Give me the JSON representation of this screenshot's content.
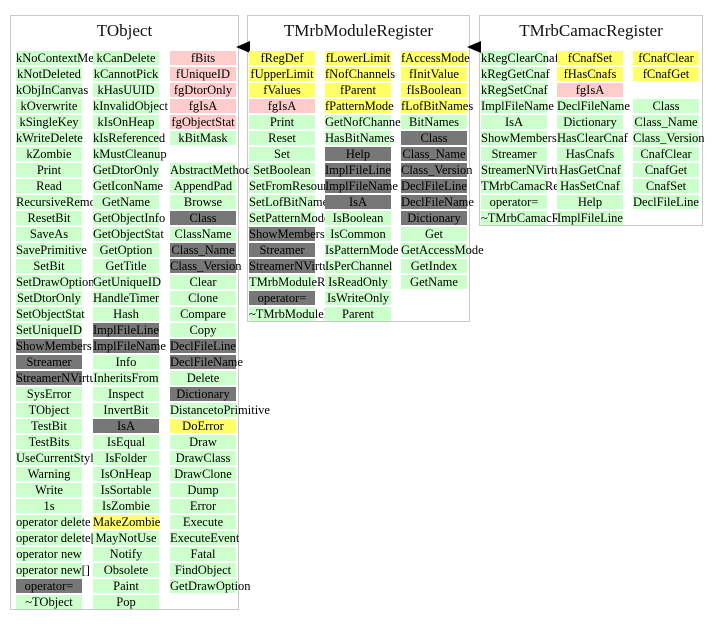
{
  "classes": [
    {
      "key": "tobject",
      "title": "TObject",
      "columns": [
        [
          {
            "t": "kNoContextMenu",
            "c": "g"
          },
          {
            "t": "kNotDeleted",
            "c": "g"
          },
          {
            "t": "kObjInCanvas",
            "c": "g"
          },
          {
            "t": "kOverwrite",
            "c": "g"
          },
          {
            "t": "kSingleKey",
            "c": "g"
          },
          {
            "t": "kWriteDelete",
            "c": "g"
          },
          {
            "t": "kZombie",
            "c": "g"
          },
          {
            "t": "Print",
            "c": "g"
          },
          {
            "t": "Read",
            "c": "g"
          },
          {
            "t": "RecursiveRemove",
            "c": "g"
          },
          {
            "t": "ResetBit",
            "c": "g"
          },
          {
            "t": "SaveAs",
            "c": "g"
          },
          {
            "t": "SavePrimitive",
            "c": "g"
          },
          {
            "t": "SetBit",
            "c": "g"
          },
          {
            "t": "SetDrawOption",
            "c": "g"
          },
          {
            "t": "SetDtorOnly",
            "c": "g"
          },
          {
            "t": "SetObjectStat",
            "c": "g"
          },
          {
            "t": "SetUniqueID",
            "c": "g"
          },
          {
            "t": "ShowMembers",
            "c": "d"
          },
          {
            "t": "Streamer",
            "c": "d"
          },
          {
            "t": "StreamerNVirtual",
            "c": "d"
          },
          {
            "t": "SysError",
            "c": "g"
          },
          {
            "t": "TObject",
            "c": "g"
          },
          {
            "t": "TestBit",
            "c": "g"
          },
          {
            "t": "TestBits",
            "c": "g"
          },
          {
            "t": "UseCurrentStyle",
            "c": "g"
          },
          {
            "t": "Warning",
            "c": "g"
          },
          {
            "t": "Write",
            "c": "g"
          },
          {
            "t": "1s",
            "c": "g"
          },
          {
            "t": "operator delete",
            "c": "g"
          },
          {
            "t": "operator delete[]",
            "c": "g"
          },
          {
            "t": "operator new",
            "c": "g"
          },
          {
            "t": "operator new[]",
            "c": "g"
          },
          {
            "t": "operator=",
            "c": "d"
          },
          {
            "t": "~TObject",
            "c": "g"
          }
        ],
        [
          {
            "t": "kCanDelete",
            "c": "g"
          },
          {
            "t": "kCannotPick",
            "c": "g"
          },
          {
            "t": "kHasUUID",
            "c": "g"
          },
          {
            "t": "kInvalidObject",
            "c": "g"
          },
          {
            "t": "kIsOnHeap",
            "c": "g"
          },
          {
            "t": "kIsReferenced",
            "c": "g"
          },
          {
            "t": "kMustCleanup",
            "c": "g"
          },
          {
            "t": "GetDtorOnly",
            "c": "g"
          },
          {
            "t": "GetIconName",
            "c": "g"
          },
          {
            "t": "GetName",
            "c": "g"
          },
          {
            "t": "GetObjectInfo",
            "c": "g"
          },
          {
            "t": "GetObjectStat",
            "c": "g"
          },
          {
            "t": "GetOption",
            "c": "g"
          },
          {
            "t": "GetTitle",
            "c": "g"
          },
          {
            "t": "GetUniqueID",
            "c": "g"
          },
          {
            "t": "HandleTimer",
            "c": "g"
          },
          {
            "t": "Hash",
            "c": "g"
          },
          {
            "t": "ImplFileLine",
            "c": "d"
          },
          {
            "t": "ImplFileName",
            "c": "d"
          },
          {
            "t": "Info",
            "c": "g"
          },
          {
            "t": "InheritsFrom",
            "c": "g"
          },
          {
            "t": "Inspect",
            "c": "g"
          },
          {
            "t": "InvertBit",
            "c": "g"
          },
          {
            "t": "IsA",
            "c": "d"
          },
          {
            "t": "IsEqual",
            "c": "g"
          },
          {
            "t": "IsFolder",
            "c": "g"
          },
          {
            "t": "IsOnHeap",
            "c": "g"
          },
          {
            "t": "IsSortable",
            "c": "g"
          },
          {
            "t": "IsZombie",
            "c": "g"
          },
          {
            "t": "MakeZombie",
            "c": "y"
          },
          {
            "t": "MayNotUse",
            "c": "g"
          },
          {
            "t": "Notify",
            "c": "g"
          },
          {
            "t": "Obsolete",
            "c": "g"
          },
          {
            "t": "Paint",
            "c": "g"
          },
          {
            "t": "Pop",
            "c": "g"
          }
        ],
        [
          {
            "t": "fBits",
            "c": "p"
          },
          {
            "t": "fUniqueID",
            "c": "p"
          },
          {
            "t": "fgDtorOnly",
            "c": "p"
          },
          {
            "t": "fgIsA",
            "c": "p"
          },
          {
            "t": "fgObjectStat",
            "c": "p"
          },
          {
            "t": "kBitMask",
            "c": "g"
          },
          {
            "t": "",
            "c": "gap"
          },
          {
            "t": "AbstractMethod",
            "c": "g"
          },
          {
            "t": "AppendPad",
            "c": "g"
          },
          {
            "t": "Browse",
            "c": "g"
          },
          {
            "t": "Class",
            "c": "d"
          },
          {
            "t": "ClassName",
            "c": "g"
          },
          {
            "t": "Class_Name",
            "c": "d"
          },
          {
            "t": "Class_Version",
            "c": "d"
          },
          {
            "t": "Clear",
            "c": "g"
          },
          {
            "t": "Clone",
            "c": "g"
          },
          {
            "t": "Compare",
            "c": "g"
          },
          {
            "t": "Copy",
            "c": "g"
          },
          {
            "t": "DeclFileLine",
            "c": "d"
          },
          {
            "t": "DeclFileName",
            "c": "d"
          },
          {
            "t": "Delete",
            "c": "g"
          },
          {
            "t": "Dictionary",
            "c": "d"
          },
          {
            "t": "DistancetoPrimitive",
            "c": "g"
          },
          {
            "t": "DoError",
            "c": "y"
          },
          {
            "t": "Draw",
            "c": "g"
          },
          {
            "t": "DrawClass",
            "c": "g"
          },
          {
            "t": "DrawClone",
            "c": "g"
          },
          {
            "t": "Dump",
            "c": "g"
          },
          {
            "t": "Error",
            "c": "g"
          },
          {
            "t": "Execute",
            "c": "g"
          },
          {
            "t": "ExecuteEvent",
            "c": "g"
          },
          {
            "t": "Fatal",
            "c": "g"
          },
          {
            "t": "FindObject",
            "c": "g"
          },
          {
            "t": "GetDrawOption",
            "c": "g"
          }
        ]
      ]
    },
    {
      "key": "tmrbmoduleregister",
      "title": "TMrbModuleRegister",
      "columns": [
        [
          {
            "t": "fRegDef",
            "c": "y"
          },
          {
            "t": "fUpperLimit",
            "c": "y"
          },
          {
            "t": "fValues",
            "c": "y"
          },
          {
            "t": "fgIsA",
            "c": "p"
          },
          {
            "t": "Print",
            "c": "g"
          },
          {
            "t": "Reset",
            "c": "g"
          },
          {
            "t": "Set",
            "c": "g"
          },
          {
            "t": "SetBoolean",
            "c": "g"
          },
          {
            "t": "SetFromResource",
            "c": "g"
          },
          {
            "t": "SetLofBitNames",
            "c": "g"
          },
          {
            "t": "SetPatternMode",
            "c": "g"
          },
          {
            "t": "ShowMembers",
            "c": "d"
          },
          {
            "t": "Streamer",
            "c": "d"
          },
          {
            "t": "StreamerNVirtual",
            "c": "d"
          },
          {
            "t": "TMrbModuleRegister",
            "c": "g"
          },
          {
            "t": "operator=",
            "c": "d"
          },
          {
            "t": "~TMrbModuleRegister",
            "c": "g"
          }
        ],
        [
          {
            "t": "fLowerLimit",
            "c": "y"
          },
          {
            "t": "fNofChannels",
            "c": "y"
          },
          {
            "t": "fParent",
            "c": "y"
          },
          {
            "t": "fPatternMode",
            "c": "y"
          },
          {
            "t": "GetNofChannels",
            "c": "g"
          },
          {
            "t": "HasBitNames",
            "c": "g"
          },
          {
            "t": "Help",
            "c": "d"
          },
          {
            "t": "ImplFileLine",
            "c": "d"
          },
          {
            "t": "ImplFileName",
            "c": "d"
          },
          {
            "t": "IsA",
            "c": "d"
          },
          {
            "t": "IsBoolean",
            "c": "g"
          },
          {
            "t": "IsCommon",
            "c": "g"
          },
          {
            "t": "IsPatternMode",
            "c": "g"
          },
          {
            "t": "IsPerChannel",
            "c": "g"
          },
          {
            "t": "IsReadOnly",
            "c": "g"
          },
          {
            "t": "IsWriteOnly",
            "c": "g"
          },
          {
            "t": "Parent",
            "c": "g"
          }
        ],
        [
          {
            "t": "fAccessMode",
            "c": "y"
          },
          {
            "t": "fInitValue",
            "c": "y"
          },
          {
            "t": "fIsBoolean",
            "c": "y"
          },
          {
            "t": "fLofBitNames",
            "c": "y"
          },
          {
            "t": "BitNames",
            "c": "g"
          },
          {
            "t": "Class",
            "c": "d"
          },
          {
            "t": "Class_Name",
            "c": "d"
          },
          {
            "t": "Class_Version",
            "c": "d"
          },
          {
            "t": "DeclFileLine",
            "c": "d"
          },
          {
            "t": "DeclFileName",
            "c": "d"
          },
          {
            "t": "Dictionary",
            "c": "d"
          },
          {
            "t": "Get",
            "c": "g"
          },
          {
            "t": "GetAccessMode",
            "c": "g"
          },
          {
            "t": "GetIndex",
            "c": "g"
          },
          {
            "t": "GetName",
            "c": "g"
          }
        ]
      ]
    },
    {
      "key": "tmrbcamacregister",
      "title": "TMrbCamacRegister",
      "columns": [
        [
          {
            "t": "kRegClearCnaf",
            "c": "g"
          },
          {
            "t": "kRegGetCnaf",
            "c": "g"
          },
          {
            "t": "kRegSetCnaf",
            "c": "g"
          },
          {
            "t": "ImplFileName",
            "c": "g"
          },
          {
            "t": "IsA",
            "c": "g"
          },
          {
            "t": "ShowMembers",
            "c": "g"
          },
          {
            "t": "Streamer",
            "c": "g"
          },
          {
            "t": "StreamerNVirtual",
            "c": "g"
          },
          {
            "t": "TMrbCamacRegister",
            "c": "g"
          },
          {
            "t": "operator=",
            "c": "g"
          },
          {
            "t": "~TMrbCamacRegister",
            "c": "g"
          }
        ],
        [
          {
            "t": "fCnafSet",
            "c": "y"
          },
          {
            "t": "fHasCnafs",
            "c": "y"
          },
          {
            "t": "fgIsA",
            "c": "p"
          },
          {
            "t": "DeclFileName",
            "c": "g"
          },
          {
            "t": "Dictionary",
            "c": "g"
          },
          {
            "t": "HasClearCnaf",
            "c": "g"
          },
          {
            "t": "HasCnafs",
            "c": "g"
          },
          {
            "t": "HasGetCnaf",
            "c": "g"
          },
          {
            "t": "HasSetCnaf",
            "c": "g"
          },
          {
            "t": "Help",
            "c": "g"
          },
          {
            "t": "ImplFileLine",
            "c": "g"
          }
        ],
        [
          {
            "t": "fCnafClear",
            "c": "y"
          },
          {
            "t": "fCnafGet",
            "c": "y"
          },
          {
            "t": "",
            "c": "gap"
          },
          {
            "t": "Class",
            "c": "g"
          },
          {
            "t": "Class_Name",
            "c": "g"
          },
          {
            "t": "Class_Version",
            "c": "g"
          },
          {
            "t": "CnafClear",
            "c": "g"
          },
          {
            "t": "CnafGet",
            "c": "g"
          },
          {
            "t": "CnafSet",
            "c": "g"
          },
          {
            "t": "DeclFileLine",
            "c": "g"
          }
        ]
      ]
    }
  ]
}
